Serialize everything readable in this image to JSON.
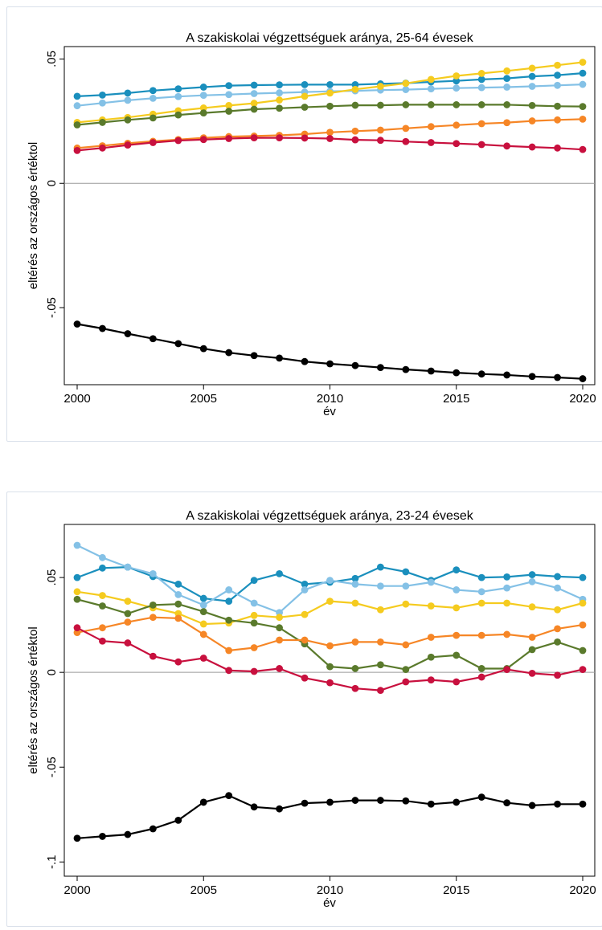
{
  "chart_data": [
    {
      "type": "line",
      "title": "A szakiskolai végzettséguek aránya, 25-64 évesek",
      "xlabel": "év",
      "ylabel": "eltérés az országos értéktol",
      "xlim": [
        2000,
        2020
      ],
      "ylim": [
        -0.08,
        0.05
      ],
      "xticks": [
        "2000",
        "2005",
        "2010",
        "2015",
        "2020"
      ],
      "yticks": [
        {
          "value": 0.05,
          "label": ".05"
        },
        {
          "value": 0,
          "label": "0"
        },
        {
          "value": -0.05,
          "label": "-.05"
        }
      ],
      "reference_line": 0,
      "grid": false,
      "legend": "none",
      "x": [
        2000,
        2001,
        2002,
        2003,
        2004,
        2005,
        2006,
        2007,
        2008,
        2009,
        2010,
        2011,
        2012,
        2013,
        2014,
        2015,
        2016,
        2017,
        2018,
        2019,
        2020
      ],
      "series": [
        {
          "color": "#1a8fbd",
          "values": [
            0.035,
            0.0355,
            0.0363,
            0.0373,
            0.038,
            0.0387,
            0.0393,
            0.0395,
            0.0396,
            0.0397,
            0.0397,
            0.0397,
            0.04,
            0.0403,
            0.0408,
            0.0412,
            0.0418,
            0.0422,
            0.043,
            0.0435,
            0.0443
          ]
        },
        {
          "color": "#84c1e6",
          "values": [
            0.0312,
            0.0323,
            0.0334,
            0.0342,
            0.0349,
            0.0354,
            0.0357,
            0.0361,
            0.0364,
            0.0367,
            0.037,
            0.0372,
            0.0375,
            0.0377,
            0.038,
            0.0383,
            0.0385,
            0.0387,
            0.039,
            0.0394,
            0.0398
          ]
        },
        {
          "color": "#f5cb1f",
          "values": [
            0.0245,
            0.0255,
            0.0265,
            0.0278,
            0.0292,
            0.0303,
            0.0313,
            0.0322,
            0.0335,
            0.035,
            0.0363,
            0.0378,
            0.039,
            0.0402,
            0.0418,
            0.0432,
            0.0442,
            0.0452,
            0.0463,
            0.0475,
            0.0487
          ]
        },
        {
          "color": "#5a7a2c",
          "values": [
            0.0235,
            0.0245,
            0.0255,
            0.0263,
            0.0275,
            0.0283,
            0.029,
            0.0298,
            0.0302,
            0.0306,
            0.031,
            0.0314,
            0.0314,
            0.0316,
            0.0316,
            0.0316,
            0.0316,
            0.0316,
            0.0313,
            0.031,
            0.0309
          ]
        },
        {
          "color": "#f68626",
          "values": [
            0.0142,
            0.0151,
            0.0161,
            0.0169,
            0.0176,
            0.0183,
            0.0188,
            0.019,
            0.0193,
            0.0198,
            0.0205,
            0.021,
            0.0214,
            0.0221,
            0.0228,
            0.0234,
            0.024,
            0.0244,
            0.0251,
            0.0255,
            0.0258
          ]
        },
        {
          "color": "#c8103e",
          "values": [
            0.0132,
            0.0142,
            0.0154,
            0.0164,
            0.0172,
            0.0176,
            0.018,
            0.0183,
            0.0183,
            0.0182,
            0.018,
            0.0175,
            0.0173,
            0.0168,
            0.0164,
            0.016,
            0.0156,
            0.015,
            0.0146,
            0.0142,
            0.0136
          ]
        },
        {
          "color": "#000000",
          "values": [
            -0.0566,
            -0.0584,
            -0.0605,
            -0.0625,
            -0.0645,
            -0.0665,
            -0.0681,
            -0.0693,
            -0.0703,
            -0.0717,
            -0.0726,
            -0.0733,
            -0.0741,
            -0.0749,
            -0.0755,
            -0.0762,
            -0.0767,
            -0.0771,
            -0.0777,
            -0.0781,
            -0.0786
          ]
        }
      ]
    },
    {
      "type": "line",
      "title": "A szakiskolai végzettséguek aránya, 23-24 évesek",
      "xlabel": "év",
      "ylabel": "eltérés az országos értéktol",
      "xlim": [
        2000,
        2020
      ],
      "ylim": [
        -0.1,
        0.07
      ],
      "xticks": [
        "2000",
        "2005",
        "2010",
        "2015",
        "2020"
      ],
      "yticks": [
        {
          "value": 0.05,
          "label": ".05"
        },
        {
          "value": 0,
          "label": "0"
        },
        {
          "value": -0.05,
          "label": "-.05"
        },
        {
          "value": -0.1,
          "label": "-.1"
        }
      ],
      "reference_line": 0,
      "grid": false,
      "legend": "none",
      "x": [
        2000,
        2001,
        2002,
        2003,
        2004,
        2005,
        2006,
        2007,
        2008,
        2009,
        2010,
        2011,
        2012,
        2013,
        2014,
        2015,
        2016,
        2017,
        2018,
        2019,
        2020
      ],
      "series": [
        {
          "color": "#1a8fbd",
          "values": [
            0.05,
            0.055,
            0.0555,
            0.0505,
            0.0465,
            0.039,
            0.0375,
            0.0485,
            0.052,
            0.0465,
            0.0475,
            0.0495,
            0.0555,
            0.053,
            0.0485,
            0.054,
            0.05,
            0.0503,
            0.0515,
            0.0505,
            0.05
          ]
        },
        {
          "color": "#84c1e6",
          "values": [
            0.067,
            0.0605,
            0.0555,
            0.052,
            0.041,
            0.0355,
            0.0435,
            0.0365,
            0.0315,
            0.0435,
            0.0485,
            0.0465,
            0.0455,
            0.0455,
            0.0475,
            0.0435,
            0.0425,
            0.0445,
            0.0478,
            0.0445,
            0.0385
          ]
        },
        {
          "color": "#f5cb1f",
          "values": [
            0.0425,
            0.0405,
            0.0375,
            0.034,
            0.031,
            0.0255,
            0.026,
            0.03,
            0.029,
            0.0305,
            0.0375,
            0.0365,
            0.033,
            0.036,
            0.035,
            0.034,
            0.0365,
            0.0365,
            0.0345,
            0.033,
            0.0365
          ]
        },
        {
          "color": "#5a7a2c",
          "values": [
            0.0385,
            0.035,
            0.031,
            0.0355,
            0.036,
            0.032,
            0.0275,
            0.026,
            0.0235,
            0.015,
            0.003,
            0.002,
            0.004,
            0.0015,
            0.008,
            0.009,
            0.002,
            0.002,
            0.012,
            0.016,
            0.0115
          ]
        },
        {
          "color": "#f68626",
          "values": [
            0.021,
            0.0235,
            0.0265,
            0.029,
            0.0285,
            0.02,
            0.0115,
            0.013,
            0.017,
            0.017,
            0.014,
            0.016,
            0.016,
            0.0145,
            0.0185,
            0.0195,
            0.0195,
            0.02,
            0.0185,
            0.023,
            0.025
          ]
        },
        {
          "color": "#c8103e",
          "values": [
            0.0235,
            0.0165,
            0.0155,
            0.0085,
            0.0055,
            0.0075,
            0.001,
            0.0005,
            0.002,
            -0.003,
            -0.0055,
            -0.0085,
            -0.0095,
            -0.005,
            -0.004,
            -0.005,
            -0.0025,
            0.0015,
            -0.0005,
            -0.0015,
            0.0015
          ]
        },
        {
          "color": "#000000",
          "values": [
            -0.0875,
            -0.0865,
            -0.0855,
            -0.0825,
            -0.078,
            -0.0685,
            -0.065,
            -0.071,
            -0.072,
            -0.069,
            -0.0685,
            -0.0675,
            -0.0675,
            -0.0678,
            -0.0695,
            -0.0685,
            -0.0658,
            -0.0688,
            -0.0702,
            -0.0695,
            -0.0695
          ]
        }
      ]
    }
  ]
}
